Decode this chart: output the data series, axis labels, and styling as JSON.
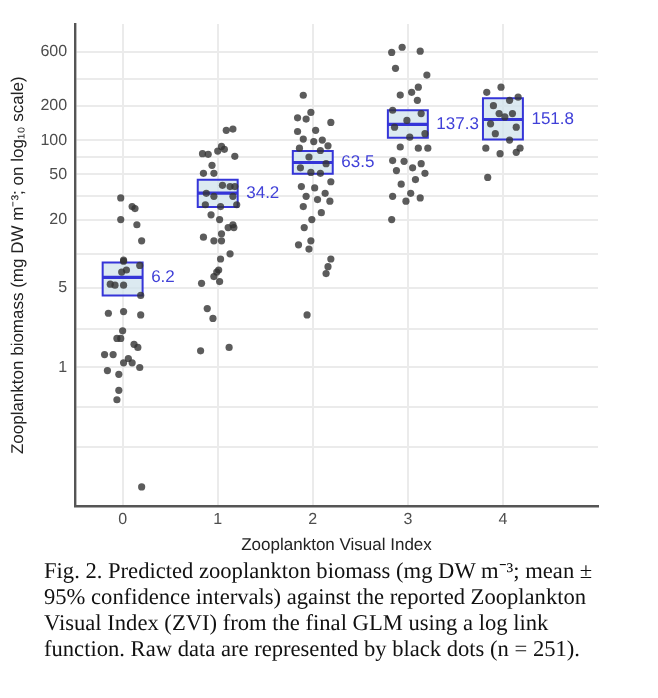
{
  "chart_data": {
    "type": "box",
    "xlabel": "Zooplankton Visual Index",
    "ylabel": "Zooplankton biomass (mg DW m⁻³; on log₁₀ scale)",
    "x": [
      0,
      1,
      2,
      3,
      4
    ],
    "boxes": [
      {
        "low": 4.3,
        "q1": 4.3,
        "median": 6.2,
        "q3": 8.4,
        "high": 8.4
      },
      {
        "low": 25.8,
        "q1": 25.8,
        "median": 34.2,
        "q3": 44.9,
        "high": 44.9
      },
      {
        "low": 50.7,
        "q1": 50.7,
        "median": 63.5,
        "q3": 80,
        "high": 80
      },
      {
        "low": 105,
        "q1": 105,
        "median": 137.3,
        "q3": 183,
        "high": 183
      },
      {
        "low": 101,
        "q1": 101,
        "median": 151.8,
        "q3": 233,
        "high": 233
      }
    ],
    "color": "#cfe3ec",
    "series": [
      {
        "type": "scatter",
        "color": "#333333",
        "x": [
          -0.02,
          0.1,
          0.13,
          -0.02,
          0.15,
          0.2,
          0.01,
          0.01,
          0.04,
          -0.01,
          -0.13,
          -0.08,
          0.01,
          0.18,
          0.19,
          -0.15,
          0.01,
          0.19,
          0,
          -0.06,
          -0.02,
          0.12,
          0.16,
          -0.19,
          -0.1,
          0.06,
          0.01,
          0.1,
          0.18,
          -0.16,
          -0.04,
          -0.04,
          -0.06,
          0.2,
          1.16,
          1.09,
          0.84,
          0.9,
          1.0,
          1.04,
          1.07,
          1.18,
          0.94,
          0.96,
          0.85,
          1.05,
          1.13,
          1.18,
          0.88,
          0.96,
          1.16,
          0.87,
          1.03,
          1.2,
          0.93,
          1.02,
          1.16,
          1.11,
          1.04,
          1.17,
          0.85,
          0.96,
          1.04,
          1.13,
          1.01,
          1.03,
          0.99,
          0.96,
          0.83,
          1.02,
          0.89,
          0.95,
          0.82,
          1.12,
          1.9,
          1.98,
          1.84,
          1.93,
          2.19,
          1.84,
          2.03,
          1.9,
          2.01,
          2.1,
          2.16,
          1.86,
          2.08,
          1.96,
          2.14,
          1.87,
          1.98,
          2.08,
          2.19,
          1.88,
          2.02,
          2.13,
          1.93,
          2.05,
          2.18,
          1.9,
          2.09,
          1.99,
          1.91,
          1.98,
          1.85,
          1.96,
          2.19,
          2.16,
          2.14,
          1.94,
          2.83,
          2.94,
          3.13,
          2.87,
          3.2,
          3.11,
          3.04,
          2.92,
          3.1,
          2.84,
          3.14,
          2.99,
          2.86,
          3.18,
          3.02,
          2.92,
          3.11,
          3.21,
          2.84,
          2.96,
          3.14,
          2.88,
          3.05,
          3.18,
          2.93,
          3.08,
          2.84,
          3.03,
          3.13,
          2.98,
          2.83,
          3.83,
          3.98,
          4.16,
          3.9,
          4.07,
          3.96,
          4.1,
          3.87,
          4.02,
          4.14,
          3.92,
          4.07,
          3.82,
          4.18,
          3.97,
          4.14,
          3.84
        ],
        "values": [
          31,
          26,
          25,
          20,
          18,
          13,
          8.6,
          8.8,
          7.2,
          6.9,
          5.4,
          5.3,
          5.3,
          7.9,
          4.3,
          3.0,
          3.1,
          2.9,
          2.1,
          1.8,
          1.8,
          1.6,
          1.5,
          1.3,
          1.3,
          1.2,
          1.1,
          1.1,
          1.0,
          0.94,
          0.87,
          0.63,
          0.52,
          0.089,
          125,
          122,
          76,
          75,
          80,
          88,
          83,
          72,
          60,
          51,
          51,
          40,
          39,
          39,
          34,
          32,
          32,
          27,
          26,
          27,
          22,
          20,
          18,
          17,
          15,
          17,
          14,
          13,
          13,
          10,
          7.2,
          9.0,
          6.9,
          6.3,
          5.5,
          5.7,
          3.3,
          2.7,
          1.4,
          1.5,
          248,
          175,
          157,
          153,
          143,
          119,
          122,
          102,
          97,
          100,
          89,
          85,
          81,
          71,
          62,
          57,
          52,
          51,
          43,
          39,
          38,
          34,
          32,
          30,
          29,
          26,
          23,
          20,
          17,
          13,
          12,
          11,
          9.0,
          7.7,
          6.7,
          2.9,
          591,
          656,
          606,
          428,
          373,
          292,
          263,
          249,
          224,
          183,
          171,
          149,
          130,
          114,
          106,
          87,
          85,
          85,
          66,
          65,
          62,
          54,
          57,
          51,
          41,
          45,
          32,
          34,
          31,
          29,
          20,
          263,
          292,
          239,
          201,
          224,
          171,
          171,
          139,
          160,
          130,
          114,
          100,
          85,
          85,
          76,
          78,
          47
        ]
      }
    ],
    "log": "y",
    "ylim": [
      0.06,
      1050
    ],
    "yticks": [
      {
        "value": 0.2,
        "label": null
      },
      {
        "value": 0.45,
        "label": null
      },
      1,
      {
        "value": 2.2,
        "label": null
      },
      5,
      {
        "value": 10,
        "label": null
      },
      20,
      {
        "value": 32,
        "label": null
      },
      50,
      {
        "value": 71,
        "label": null
      },
      100,
      200,
      {
        "value": 346,
        "label": null
      },
      600
    ],
    "xlim": [
      -0.5,
      5
    ],
    "xticks": [
      0,
      1,
      2,
      3,
      4
    ],
    "grid": true,
    "annotations": [
      {
        "text": "6.2",
        "x": 0,
        "y": 6.2
      },
      {
        "text": "34.2",
        "x": 1,
        "y": 34.2
      },
      {
        "text": "63.5",
        "x": 2,
        "y": 63.5
      },
      {
        "text": "137.3",
        "x": 3,
        "y": 137.3
      },
      {
        "text": "151.8",
        "x": 4,
        "y": 151.8
      },
      "Fig. 2. Predicted zooplankton biomass (mg DW m⁻³; mean ± 95% confidence intervals) against the reported Zooplankton Visual Index (ZVI) from the final GLM using a log link function. Raw data are represented by black dots (n = 251)."
    ]
  }
}
